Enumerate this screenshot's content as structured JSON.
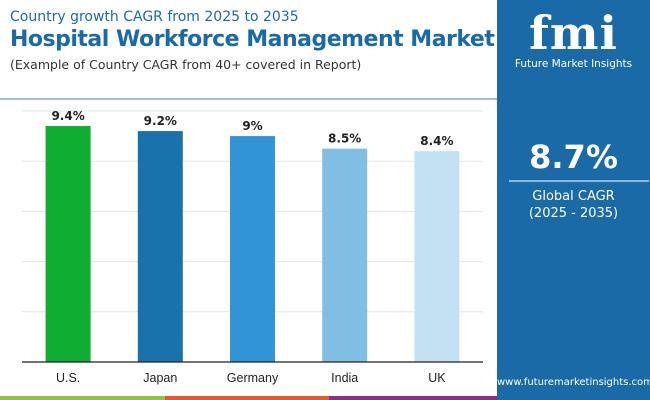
{
  "header": {
    "subtitle": "Country growth CAGR from 2025 to 2035",
    "title": "Hospital Workforce Management Market",
    "note": "(Example of Country CAGR from 40+ covered in Report)"
  },
  "panel": {
    "logo_text": "fmi",
    "brand": "Future Market Insights",
    "global_value": "8.7%",
    "global_label": "Global CAGR",
    "global_period": "(2025 - 2035)",
    "url": "www.futuremarketinsights.com",
    "background": "#1a6aa8"
  },
  "chart_data": {
    "type": "bar",
    "categories": [
      "U.S.",
      "Japan",
      "Germany",
      "India",
      "UK"
    ],
    "values": [
      9.4,
      9.2,
      9.0,
      8.5,
      8.4
    ],
    "labels": [
      "9.4%",
      "9.2%",
      "9%",
      "8.5%",
      "8.4%"
    ],
    "colors": [
      "#0fae33",
      "#1a72ad",
      "#3094d6",
      "#80bee3",
      "#c4e1f3"
    ],
    "ylim": [
      0,
      10
    ],
    "grid": true
  },
  "stripes": [
    "#8dc63f",
    "#e8572a",
    "#8e2c8e"
  ]
}
